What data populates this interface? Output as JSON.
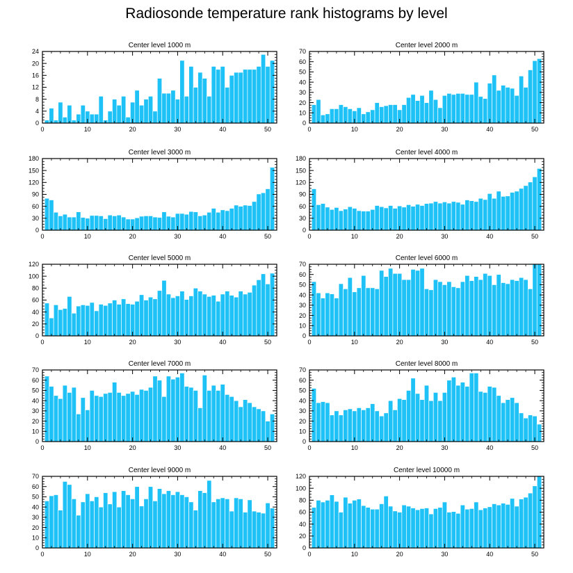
{
  "title": "Radiosonde temperature rank histograms by level",
  "colors": {
    "bar": "#1ec2f6",
    "bar_edge": "#ffffff",
    "axis": "#000000",
    "background": "#ffffff"
  },
  "chart_data": [
    {
      "type": "bar",
      "title": "Center level 1000 m",
      "xlabel": "",
      "ylabel": "",
      "xlim": [
        0,
        52
      ],
      "ylim": [
        0,
        24
      ],
      "xticks": [
        0,
        10,
        20,
        30,
        40,
        50
      ],
      "yticks": [
        0,
        4,
        8,
        12,
        16,
        20,
        24
      ],
      "x": [
        1,
        2,
        3,
        4,
        5,
        6,
        7,
        8,
        9,
        10,
        11,
        12,
        13,
        14,
        15,
        16,
        17,
        18,
        19,
        20,
        21,
        22,
        23,
        24,
        25,
        26,
        27,
        28,
        29,
        30,
        31,
        32,
        33,
        34,
        35,
        36,
        37,
        38,
        39,
        40,
        41,
        42,
        43,
        44,
        45,
        46,
        47,
        48,
        49,
        50,
        51
      ],
      "values": [
        1,
        5,
        1,
        7,
        2,
        6,
        1,
        3,
        6,
        4,
        3,
        3,
        9,
        1,
        4,
        8,
        6,
        9,
        2,
        7,
        11,
        6,
        8,
        9,
        4,
        15,
        10,
        10,
        11,
        8,
        21,
        9,
        19,
        12,
        17,
        15,
        9,
        19,
        18,
        19,
        12,
        16,
        17,
        17,
        18,
        18,
        18,
        19,
        23,
        19,
        21
      ]
    },
    {
      "type": "bar",
      "title": "Center level 2000 m",
      "xlabel": "",
      "ylabel": "",
      "xlim": [
        0,
        52
      ],
      "ylim": [
        0,
        70
      ],
      "xticks": [
        0,
        10,
        20,
        30,
        40,
        50
      ],
      "yticks": [
        0,
        10,
        20,
        30,
        40,
        50,
        60,
        70
      ],
      "x": [
        1,
        2,
        3,
        4,
        5,
        6,
        7,
        8,
        9,
        10,
        11,
        12,
        13,
        14,
        15,
        16,
        17,
        18,
        19,
        20,
        21,
        22,
        23,
        24,
        25,
        26,
        27,
        28,
        29,
        30,
        31,
        32,
        33,
        34,
        35,
        36,
        37,
        38,
        39,
        40,
        41,
        42,
        43,
        44,
        45,
        46,
        47,
        48,
        49,
        50,
        51
      ],
      "values": [
        18,
        23,
        8,
        9,
        14,
        14,
        18,
        16,
        14,
        12,
        15,
        9,
        11,
        13,
        20,
        16,
        17,
        18,
        18,
        13,
        18,
        25,
        28,
        22,
        27,
        20,
        32,
        23,
        15,
        27,
        29,
        28,
        29,
        29,
        28,
        28,
        40,
        26,
        24,
        39,
        47,
        32,
        37,
        35,
        34,
        27,
        46,
        35,
        52,
        61,
        63
      ]
    },
    {
      "type": "bar",
      "title": "Center level 3000 m",
      "xlabel": "",
      "ylabel": "",
      "xlim": [
        0,
        52
      ],
      "ylim": [
        0,
        180
      ],
      "xticks": [
        0,
        10,
        20,
        30,
        40,
        50
      ],
      "yticks": [
        0,
        30,
        60,
        90,
        120,
        150,
        180
      ],
      "x": [
        1,
        2,
        3,
        4,
        5,
        6,
        7,
        8,
        9,
        10,
        11,
        12,
        13,
        14,
        15,
        16,
        17,
        18,
        19,
        20,
        21,
        22,
        23,
        24,
        25,
        26,
        27,
        28,
        29,
        30,
        31,
        32,
        33,
        34,
        35,
        36,
        37,
        38,
        39,
        40,
        41,
        42,
        43,
        44,
        45,
        46,
        47,
        48,
        49,
        50,
        51
      ],
      "values": [
        80,
        76,
        45,
        36,
        40,
        33,
        33,
        46,
        32,
        30,
        37,
        37,
        36,
        29,
        38,
        36,
        38,
        33,
        28,
        28,
        31,
        35,
        36,
        36,
        33,
        32,
        46,
        35,
        33,
        42,
        42,
        40,
        47,
        46,
        36,
        38,
        45,
        55,
        45,
        51,
        49,
        55,
        63,
        60,
        63,
        62,
        72,
        91,
        94,
        104,
        158
      ]
    },
    {
      "type": "bar",
      "title": "Center level 4000 m",
      "xlabel": "",
      "ylabel": "",
      "xlim": [
        0,
        52
      ],
      "ylim": [
        0,
        180
      ],
      "xticks": [
        0,
        10,
        20,
        30,
        40,
        50
      ],
      "yticks": [
        0,
        30,
        60,
        90,
        120,
        150,
        180
      ],
      "x": [
        1,
        2,
        3,
        4,
        5,
        6,
        7,
        8,
        9,
        10,
        11,
        12,
        13,
        14,
        15,
        16,
        17,
        18,
        19,
        20,
        21,
        22,
        23,
        24,
        25,
        26,
        27,
        28,
        29,
        30,
        31,
        32,
        33,
        34,
        35,
        36,
        37,
        38,
        39,
        40,
        41,
        42,
        43,
        44,
        45,
        46,
        47,
        48,
        49,
        50,
        51
      ],
      "values": [
        104,
        64,
        67,
        58,
        52,
        57,
        49,
        53,
        59,
        55,
        49,
        48,
        48,
        52,
        62,
        59,
        56,
        62,
        55,
        61,
        58,
        64,
        60,
        65,
        62,
        67,
        68,
        72,
        68,
        71,
        68,
        72,
        70,
        65,
        76,
        74,
        72,
        80,
        77,
        92,
        80,
        98,
        85,
        86,
        95,
        98,
        105,
        112,
        121,
        134,
        155
      ]
    },
    {
      "type": "bar",
      "title": "Center level 5000 m",
      "xlabel": "",
      "ylabel": "",
      "xlim": [
        0,
        52
      ],
      "ylim": [
        0,
        120
      ],
      "xticks": [
        0,
        10,
        20,
        30,
        40,
        50
      ],
      "yticks": [
        0,
        20,
        40,
        60,
        80,
        100,
        120
      ],
      "x": [
        1,
        2,
        3,
        4,
        5,
        6,
        7,
        8,
        9,
        10,
        11,
        12,
        13,
        14,
        15,
        16,
        17,
        18,
        19,
        20,
        21,
        22,
        23,
        24,
        25,
        26,
        27,
        28,
        29,
        30,
        31,
        32,
        33,
        34,
        35,
        36,
        37,
        38,
        39,
        40,
        41,
        42,
        43,
        44,
        45,
        46,
        47,
        48,
        49,
        50,
        51
      ],
      "values": [
        55,
        30,
        52,
        44,
        46,
        66,
        38,
        50,
        52,
        51,
        56,
        42,
        53,
        51,
        55,
        60,
        53,
        62,
        54,
        53,
        58,
        69,
        60,
        65,
        62,
        76,
        93,
        70,
        64,
        67,
        75,
        61,
        67,
        80,
        75,
        70,
        66,
        68,
        58,
        70,
        75,
        68,
        65,
        75,
        70,
        73,
        85,
        94,
        104,
        87,
        105
      ]
    },
    {
      "type": "bar",
      "title": "Center level 6000 m",
      "xlabel": "",
      "ylabel": "",
      "xlim": [
        0,
        52
      ],
      "ylim": [
        0,
        70
      ],
      "xticks": [
        0,
        10,
        20,
        30,
        40,
        50
      ],
      "yticks": [
        0,
        10,
        20,
        30,
        40,
        50,
        60,
        70
      ],
      "x": [
        1,
        2,
        3,
        4,
        5,
        6,
        7,
        8,
        9,
        10,
        11,
        12,
        13,
        14,
        15,
        16,
        17,
        18,
        19,
        20,
        21,
        22,
        23,
        24,
        25,
        26,
        27,
        28,
        29,
        30,
        31,
        32,
        33,
        34,
        35,
        36,
        37,
        38,
        39,
        40,
        41,
        42,
        43,
        44,
        45,
        46,
        47,
        48,
        49,
        50,
        51
      ],
      "values": [
        53,
        42,
        37,
        42,
        41,
        37,
        51,
        46,
        57,
        43,
        47,
        59,
        47,
        47,
        46,
        64,
        58,
        66,
        61,
        61,
        55,
        55,
        65,
        64,
        66,
        46,
        45,
        55,
        53,
        50,
        53,
        48,
        47,
        53,
        59,
        54,
        58,
        55,
        61,
        59,
        50,
        60,
        52,
        51,
        55,
        54,
        57,
        55,
        46,
        70,
        70
      ]
    },
    {
      "type": "bar",
      "title": "Center level 7000 m",
      "xlabel": "",
      "ylabel": "",
      "xlim": [
        0,
        52
      ],
      "ylim": [
        0,
        70
      ],
      "xticks": [
        0,
        10,
        20,
        30,
        40,
        50
      ],
      "yticks": [
        0,
        10,
        20,
        30,
        40,
        50,
        60,
        70
      ],
      "x": [
        1,
        2,
        3,
        4,
        5,
        6,
        7,
        8,
        9,
        10,
        11,
        12,
        13,
        14,
        15,
        16,
        17,
        18,
        19,
        20,
        21,
        22,
        23,
        24,
        25,
        26,
        27,
        28,
        29,
        30,
        31,
        32,
        33,
        34,
        35,
        36,
        37,
        38,
        39,
        40,
        41,
        42,
        43,
        44,
        45,
        46,
        47,
        48,
        49,
        50,
        51
      ],
      "values": [
        64,
        54,
        45,
        42,
        55,
        48,
        53,
        27,
        43,
        31,
        50,
        45,
        44,
        47,
        48,
        58,
        48,
        45,
        47,
        49,
        46,
        51,
        50,
        53,
        64,
        60,
        44,
        64,
        61,
        63,
        67,
        54,
        53,
        50,
        33,
        65,
        50,
        55,
        50,
        56,
        46,
        44,
        40,
        34,
        41,
        38,
        34,
        32,
        30,
        20,
        27
      ]
    },
    {
      "type": "bar",
      "title": "Center level 8000 m",
      "xlabel": "",
      "ylabel": "",
      "xlim": [
        0,
        52
      ],
      "ylim": [
        0,
        70
      ],
      "xticks": [
        0,
        10,
        20,
        30,
        40,
        50
      ],
      "yticks": [
        0,
        10,
        20,
        30,
        40,
        50,
        60,
        70
      ],
      "x": [
        1,
        2,
        3,
        4,
        5,
        6,
        7,
        8,
        9,
        10,
        11,
        12,
        13,
        14,
        15,
        16,
        17,
        18,
        19,
        20,
        21,
        22,
        23,
        24,
        25,
        26,
        27,
        28,
        29,
        30,
        31,
        32,
        33,
        34,
        35,
        36,
        37,
        38,
        39,
        40,
        41,
        42,
        43,
        44,
        45,
        46,
        47,
        48,
        49,
        50,
        51
      ],
      "values": [
        52,
        38,
        39,
        38,
        26,
        30,
        26,
        31,
        32,
        30,
        33,
        31,
        33,
        37,
        30,
        25,
        28,
        40,
        31,
        42,
        41,
        50,
        62,
        47,
        41,
        55,
        40,
        48,
        40,
        48,
        60,
        63,
        55,
        58,
        54,
        67,
        67,
        49,
        48,
        54,
        53,
        45,
        38,
        41,
        43,
        38,
        28,
        23,
        26,
        25,
        17
      ]
    },
    {
      "type": "bar",
      "title": "Center level 9000 m",
      "xlabel": "",
      "ylabel": "",
      "xlim": [
        0,
        52
      ],
      "ylim": [
        0,
        70
      ],
      "xticks": [
        0,
        10,
        20,
        30,
        40,
        50
      ],
      "yticks": [
        0,
        10,
        20,
        30,
        40,
        50,
        60,
        70
      ],
      "x": [
        1,
        2,
        3,
        4,
        5,
        6,
        7,
        8,
        9,
        10,
        11,
        12,
        13,
        14,
        15,
        16,
        17,
        18,
        19,
        20,
        21,
        22,
        23,
        24,
        25,
        26,
        27,
        28,
        29,
        30,
        31,
        32,
        33,
        34,
        35,
        36,
        37,
        38,
        39,
        40,
        41,
        42,
        43,
        44,
        45,
        46,
        47,
        48,
        49,
        50,
        51
      ],
      "values": [
        46,
        51,
        52,
        37,
        65,
        62,
        48,
        32,
        45,
        53,
        46,
        50,
        40,
        54,
        43,
        55,
        40,
        56,
        52,
        48,
        60,
        41,
        48,
        60,
        46,
        58,
        53,
        56,
        52,
        55,
        52,
        50,
        45,
        37,
        56,
        54,
        66,
        45,
        48,
        49,
        48,
        36,
        49,
        48,
        35,
        47,
        36,
        35,
        34,
        44,
        39
      ]
    },
    {
      "type": "bar",
      "title": "Center level 10000 m",
      "xlabel": "",
      "ylabel": "",
      "xlim": [
        0,
        52
      ],
      "ylim": [
        0,
        120
      ],
      "xticks": [
        0,
        10,
        20,
        30,
        40,
        50
      ],
      "yticks": [
        0,
        20,
        40,
        60,
        80,
        100,
        120
      ],
      "x": [
        1,
        2,
        3,
        4,
        5,
        6,
        7,
        8,
        9,
        10,
        11,
        12,
        13,
        14,
        15,
        16,
        17,
        18,
        19,
        20,
        21,
        22,
        23,
        24,
        25,
        26,
        27,
        28,
        29,
        30,
        31,
        32,
        33,
        34,
        35,
        36,
        37,
        38,
        39,
        40,
        41,
        42,
        43,
        44,
        45,
        46,
        47,
        48,
        49,
        50,
        51
      ],
      "values": [
        68,
        80,
        77,
        80,
        89,
        78,
        60,
        85,
        75,
        80,
        82,
        71,
        68,
        65,
        65,
        74,
        87,
        70,
        62,
        60,
        72,
        70,
        67,
        64,
        66,
        67,
        57,
        66,
        68,
        77,
        60,
        61,
        58,
        72,
        65,
        66,
        77,
        64,
        67,
        69,
        74,
        72,
        75,
        73,
        83,
        70,
        82,
        85,
        92,
        104,
        120
      ]
    }
  ]
}
